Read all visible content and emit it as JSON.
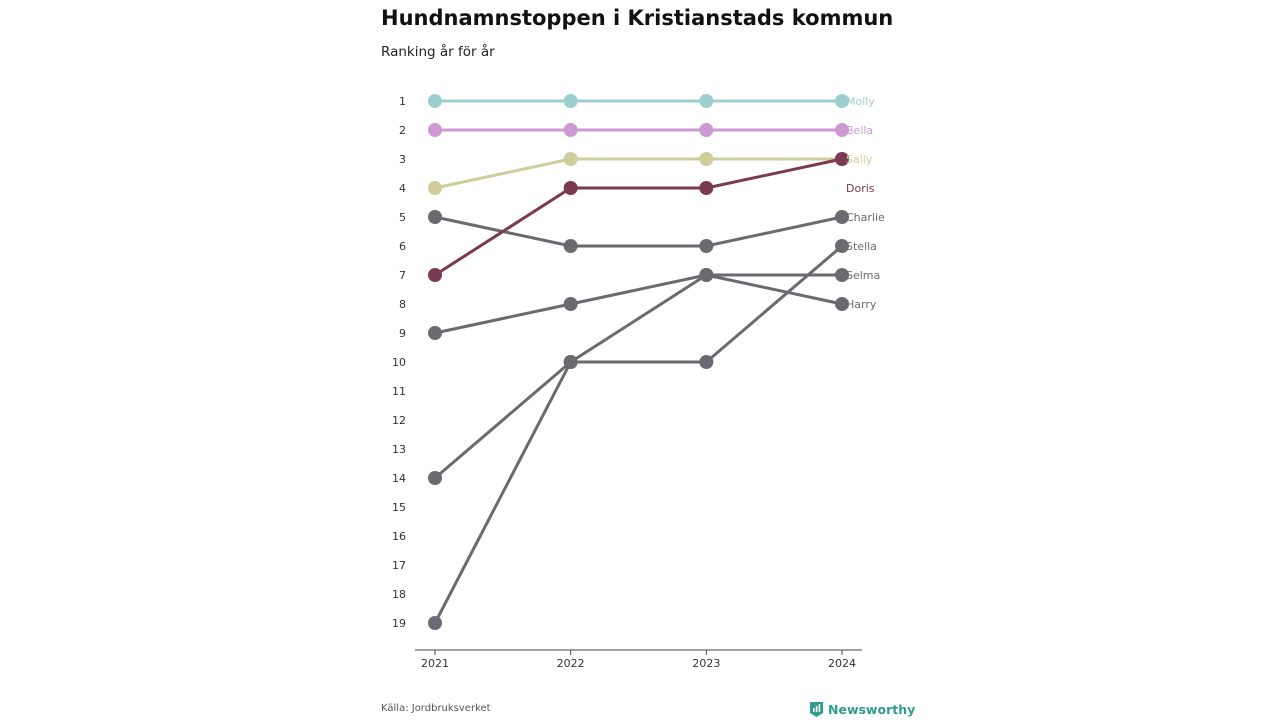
{
  "header": {
    "title": "Hundnamnstoppen i Kristianstads kommun",
    "subtitle": "Ranking år för år"
  },
  "footer": {
    "source": "Källa: Jordbruksverket",
    "brand": "Newsworthy"
  },
  "colors": {
    "molly": "#9dcfd0",
    "bella": "#cc99d3",
    "sally": "#cfcd9c",
    "doris": "#7a3a52",
    "other": "#6a6a70"
  },
  "chart_data": {
    "type": "line",
    "subtype": "bump",
    "x": [
      "2021",
      "2022",
      "2023",
      "2024"
    ],
    "y_ticks": [
      1,
      2,
      3,
      4,
      5,
      6,
      7,
      8,
      9,
      10,
      11,
      12,
      13,
      14,
      15,
      16,
      17,
      18,
      19
    ],
    "ylim": [
      1,
      19
    ],
    "y_reversed": true,
    "series": [
      {
        "name": "Molly",
        "values": [
          1,
          1,
          1,
          1
        ],
        "color": "#9dcfd0"
      },
      {
        "name": "Bella",
        "values": [
          2,
          2,
          2,
          2
        ],
        "color": "#cc99d3"
      },
      {
        "name": "Sally",
        "values": [
          4,
          3,
          3,
          3
        ],
        "color": "#cfcd9c"
      },
      {
        "name": "Doris",
        "values": [
          7,
          4,
          4,
          3
        ],
        "color": "#7a3a52"
      },
      {
        "name": "Charlie",
        "values": [
          5,
          6,
          6,
          5
        ],
        "color": "#6a6a70"
      },
      {
        "name": "Stella",
        "values": [
          19,
          10,
          10,
          6
        ],
        "color": "#6a6a70"
      },
      {
        "name": "Selma",
        "values": [
          14,
          10,
          7,
          7
        ],
        "color": "#6a6a70"
      },
      {
        "name": "Harry",
        "values": [
          9,
          8,
          7,
          8
        ],
        "color": "#6a6a70"
      }
    ],
    "label_ranks": [
      1,
      2,
      3,
      4,
      5,
      6,
      7,
      8
    ]
  }
}
